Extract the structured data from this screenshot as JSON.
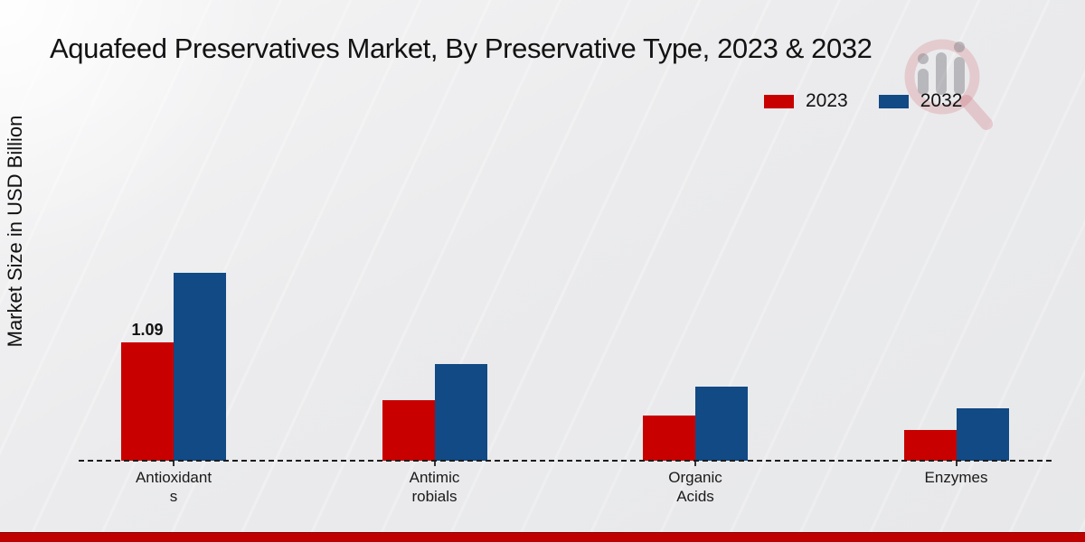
{
  "chart": {
    "title": "Aquafeed Preservatives Market, By Preservative Type, 2023 & 2032",
    "ylabel": "Market Size in USD Billion"
  },
  "legend": {
    "items": [
      {
        "label": "2023",
        "color": "#c80000"
      },
      {
        "label": "2032",
        "color": "#114a85"
      }
    ]
  },
  "chart_data": {
    "type": "bar",
    "title": "Aquafeed Preservatives Market, By Preservative Type, 2023 & 2032",
    "xlabel": "",
    "ylabel": "Market Size in USD Billion",
    "categories": [
      "Antioxidants",
      "Antimicrobials",
      "Organic Acids",
      "Enzymes"
    ],
    "category_label_lines": [
      [
        "Antioxidant",
        "s"
      ],
      [
        "Antimic",
        "robials"
      ],
      [
        "Organic",
        "Acids"
      ],
      [
        "Enzymes"
      ]
    ],
    "series": [
      {
        "name": "2023",
        "color": "#c80000",
        "values": [
          1.09,
          0.56,
          0.42,
          0.28
        ]
      },
      {
        "name": "2032",
        "color": "#114a85",
        "values": [
          1.73,
          0.89,
          0.68,
          0.48
        ]
      }
    ],
    "data_labels": [
      {
        "series_index": 0,
        "category_index": 0,
        "text": "1.09"
      }
    ],
    "ylim": [
      0,
      1.8
    ],
    "grid": false,
    "axis_ticks_visible": false,
    "legend_position": "top-right",
    "baseline_style": "dashed"
  },
  "branding": {
    "watermark_icon": "magnifier-bar-chart-logo",
    "bottom_bar_color": "#be0000"
  }
}
